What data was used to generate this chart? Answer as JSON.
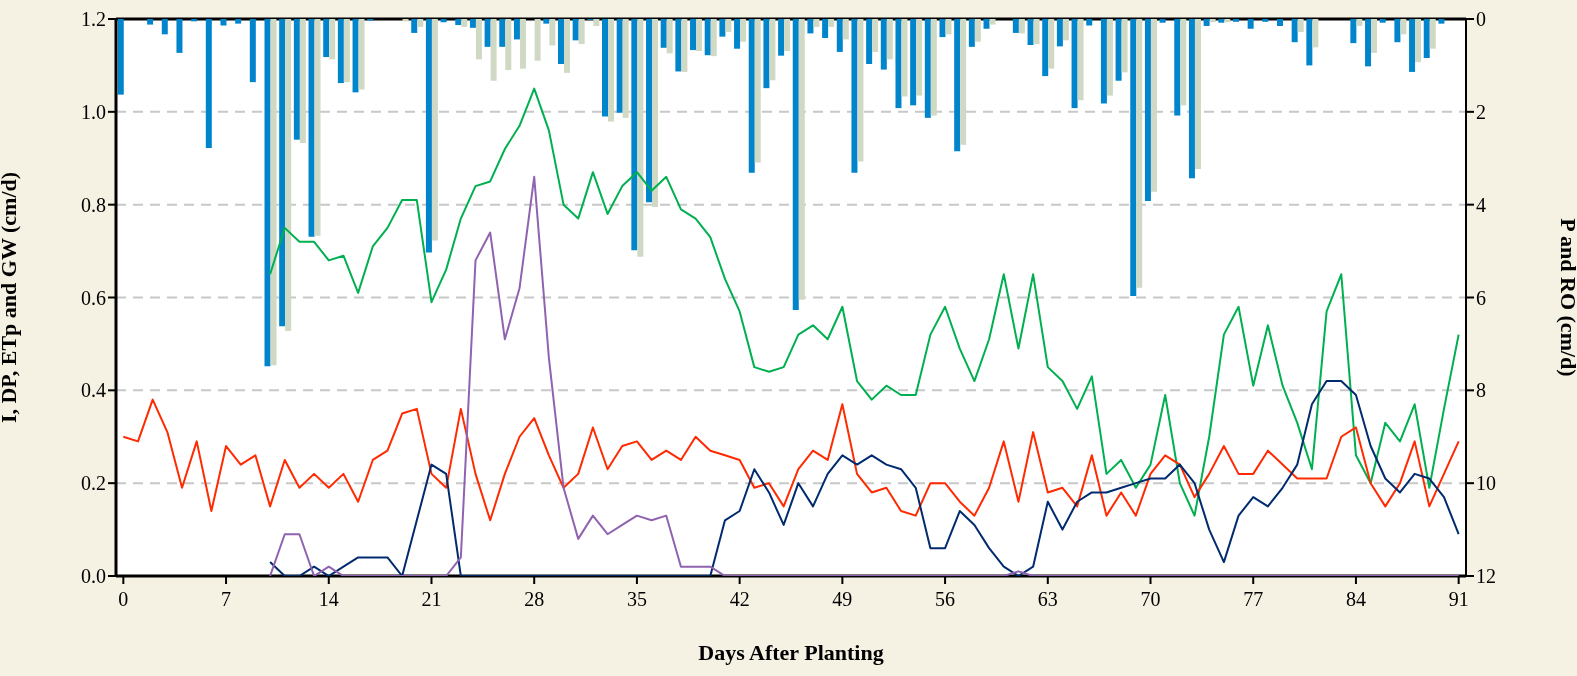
{
  "chart_data": {
    "type": "line",
    "xlabel": "Days After Planting",
    "ylabel": "I, DP, ETp and GW  (cm/d)",
    "y2label": "P and RO (cm/d)",
    "categories": [
      "0",
      null,
      null,
      null,
      null,
      null,
      null,
      "7",
      null,
      null,
      null,
      null,
      null,
      null,
      "14",
      null,
      null,
      null,
      null,
      null,
      null,
      "21",
      null,
      null,
      null,
      null,
      null,
      null,
      "28",
      null,
      null,
      null,
      null,
      null,
      null,
      "35",
      null,
      null,
      null,
      null,
      null,
      null,
      "42",
      null,
      null,
      null,
      null,
      null,
      null,
      "49",
      null,
      null,
      null,
      null,
      null,
      null,
      "56",
      null,
      null,
      null,
      null,
      null,
      null,
      "63",
      null,
      null,
      null,
      null,
      null,
      null,
      "70",
      null,
      null,
      null,
      null,
      null,
      null,
      "77",
      null,
      null,
      null,
      null,
      null,
      null,
      "84",
      null,
      null,
      null,
      null,
      null,
      null,
      "91"
    ],
    "ylim": [
      0,
      1.2
    ],
    "yticks": [
      {
        "value": 0,
        "label": "0.0"
      },
      {
        "value": 0.2,
        "label": "0.2"
      },
      {
        "value": 0.4,
        "label": "0.4"
      },
      {
        "value": 0.6,
        "label": "0.6"
      },
      {
        "value": 0.8,
        "label": "0.8"
      },
      {
        "value": 1,
        "label": "1.0"
      },
      {
        "value": 1.2,
        "label": "1.2"
      }
    ],
    "y2lim": [
      12,
      0
    ],
    "y2ticks": [
      0,
      2,
      4,
      6,
      8,
      10,
      12
    ],
    "grid": "y",
    "marker": "none",
    "line_style": "solid",
    "series": [
      {
        "type": "bar",
        "axis": "y2",
        "color": "#0085cc",
        "values": [
          1.63,
          0,
          0.12,
          0.33,
          0.73,
          0.05,
          2.78,
          0.14,
          0.1,
          1.36,
          7.48,
          6.62,
          2.6,
          4.69,
          0.82,
          1.38,
          1.58,
          0.03,
          0,
          0,
          0.3,
          5.03,
          0.07,
          0.13,
          0.19,
          0.6,
          0.6,
          0.44,
          0,
          0.1,
          0.97,
          0.46,
          0.02,
          2.1,
          2.02,
          4.98,
          3.95,
          0.62,
          1.13,
          0.67,
          0.78,
          0.38,
          0.64,
          3.31,
          1.49,
          0.79,
          6.27,
          0.31,
          0.41,
          0.71,
          3.31,
          0.97,
          1.09,
          1.92,
          1.86,
          2.13,
          0.39,
          2.85,
          0.6,
          0.21,
          0,
          0.3,
          0.56,
          1.23,
          0.59,
          1.92,
          0.14,
          1.82,
          1.33,
          5.97,
          3.92,
          0.08,
          2.08,
          3.43,
          0.15,
          0.08,
          0.06,
          0.21,
          0.06,
          0.15,
          0.5,
          1.0,
          0,
          0,
          0.52,
          1.02,
          0.08,
          0.5,
          1.14,
          0.84,
          0.1,
          0
        ]
      },
      {
        "type": "bar",
        "axis": "y2",
        "color": "#d0d9c4",
        "values": [
          0,
          0,
          0,
          0,
          0,
          0,
          0,
          0,
          0,
          0,
          7.46,
          6.72,
          2.67,
          4.67,
          0.87,
          1.36,
          1.52,
          0,
          0,
          0.05,
          0.17,
          4.77,
          0,
          0.17,
          0.87,
          1.33,
          1.1,
          1.07,
          0.9,
          0.57,
          1.16,
          0.54,
          0.15,
          2.21,
          2.13,
          5.12,
          4.05,
          0.74,
          1.14,
          0.69,
          0.8,
          0.28,
          0.49,
          3.09,
          1.32,
          0.69,
          6.05,
          0.17,
          0.17,
          0.44,
          3.07,
          0.71,
          0.87,
          1.67,
          1.65,
          2.08,
          0.33,
          2.71,
          0.49,
          0.12,
          0,
          0.31,
          0.54,
          1.07,
          0.46,
          1.75,
          0,
          1.65,
          1.15,
          5.79,
          3.72,
          0,
          1.86,
          3.23,
          0.07,
          0.07,
          0,
          0,
          0,
          0,
          0.28,
          0.61,
          0,
          0,
          0.15,
          0.73,
          0,
          0.33,
          0.93,
          0.64,
          0,
          0
        ]
      },
      {
        "color": "#00b050",
        "values": [
          null,
          null,
          null,
          null,
          null,
          null,
          null,
          null,
          null,
          null,
          0.65,
          0.75,
          0.72,
          0.72,
          0.68,
          0.69,
          0.61,
          0.71,
          0.75,
          0.81,
          0.81,
          0.59,
          0.66,
          0.77,
          0.84,
          0.85,
          0.92,
          0.97,
          1.05,
          0.96,
          0.8,
          0.77,
          0.87,
          0.78,
          0.84,
          0.87,
          0.83,
          0.86,
          0.79,
          0.77,
          0.73,
          0.64,
          0.57,
          0.45,
          0.44,
          0.45,
          0.52,
          0.54,
          0.51,
          0.58,
          0.42,
          0.38,
          0.41,
          0.39,
          0.39,
          0.52,
          0.58,
          0.49,
          0.42,
          0.51,
          0.65,
          0.49,
          0.65,
          0.45,
          0.42,
          0.36,
          0.43,
          0.22,
          0.25,
          0.19,
          0.24,
          0.39,
          0.2,
          0.13,
          0.3,
          0.52,
          0.58,
          0.41,
          0.54,
          0.41,
          0.33,
          0.23,
          0.57,
          0.65,
          0.26,
          0.2,
          0.33,
          0.29,
          0.37,
          0.19,
          0.36,
          0.52
        ]
      },
      {
        "color": "#ff2a00",
        "values": [
          0.3,
          0.29,
          0.38,
          0.31,
          0.19,
          0.29,
          0.14,
          0.28,
          0.24,
          0.26,
          0.15,
          0.25,
          0.19,
          0.22,
          0.19,
          0.22,
          0.16,
          0.25,
          0.27,
          0.35,
          0.36,
          0.22,
          0.19,
          0.36,
          0.22,
          0.12,
          0.22,
          0.3,
          0.34,
          0.26,
          0.19,
          0.22,
          0.32,
          0.23,
          0.28,
          0.29,
          0.25,
          0.27,
          0.25,
          0.3,
          0.27,
          0.26,
          0.25,
          0.19,
          0.2,
          0.15,
          0.23,
          0.27,
          0.25,
          0.37,
          0.22,
          0.18,
          0.19,
          0.14,
          0.13,
          0.2,
          0.2,
          0.16,
          0.13,
          0.19,
          0.29,
          0.16,
          0.31,
          0.18,
          0.19,
          0.15,
          0.26,
          0.13,
          0.18,
          0.13,
          0.22,
          0.26,
          0.24,
          0.17,
          0.22,
          0.28,
          0.22,
          0.22,
          0.27,
          0.24,
          0.21,
          0.21,
          0.21,
          0.3,
          0.32,
          0.2,
          0.15,
          0.2,
          0.29,
          0.15,
          0.22,
          0.29
        ]
      },
      {
        "color": "#002b6e",
        "values": [
          null,
          null,
          null,
          null,
          null,
          null,
          null,
          null,
          null,
          null,
          0.03,
          0,
          0,
          0.02,
          0,
          0.02,
          0.04,
          0.04,
          0.04,
          0,
          0.12,
          0.24,
          0.22,
          0,
          0,
          0,
          0,
          0,
          0,
          0,
          0,
          0,
          0,
          0,
          0,
          0,
          0,
          0,
          0,
          0,
          0,
          0.12,
          0.14,
          0.23,
          0.18,
          0.11,
          0.2,
          0.15,
          0.22,
          0.26,
          0.24,
          0.26,
          0.24,
          0.23,
          0.19,
          0.06,
          0.06,
          0.14,
          0.11,
          0.06,
          0.02,
          0,
          0.02,
          0.16,
          0.1,
          0.16,
          0.18,
          0.18,
          0.19,
          0.2,
          0.21,
          0.21,
          0.24,
          0.2,
          0.1,
          0.03,
          0.13,
          0.17,
          0.15,
          0.19,
          0.24,
          0.37,
          0.42,
          0.42,
          0.39,
          0.28,
          0.21,
          0.18,
          0.22,
          0.21,
          0.17,
          0.09
        ]
      },
      {
        "color": "#8f63b0",
        "values": [
          null,
          null,
          null,
          null,
          null,
          null,
          null,
          null,
          null,
          null,
          0,
          0.09,
          0.09,
          0,
          0.02,
          0,
          0,
          0,
          0,
          0,
          0,
          0,
          0,
          0.04,
          0.68,
          0.74,
          0.51,
          0.62,
          0.86,
          0.47,
          0.19,
          0.08,
          0.13,
          0.09,
          0.11,
          0.13,
          0.12,
          0.13,
          0.02,
          0.02,
          0.02,
          0,
          0,
          0,
          0,
          0,
          0,
          0,
          0,
          0,
          0,
          0,
          0,
          0,
          0,
          0,
          0,
          0,
          0,
          0,
          0,
          0.01,
          0,
          0,
          0,
          0,
          0,
          0,
          0,
          0,
          0,
          0,
          0,
          0,
          0,
          0,
          0,
          0,
          0,
          0,
          0,
          0,
          0,
          0,
          0,
          0,
          0,
          0,
          0,
          0,
          0,
          0
        ]
      }
    ]
  }
}
